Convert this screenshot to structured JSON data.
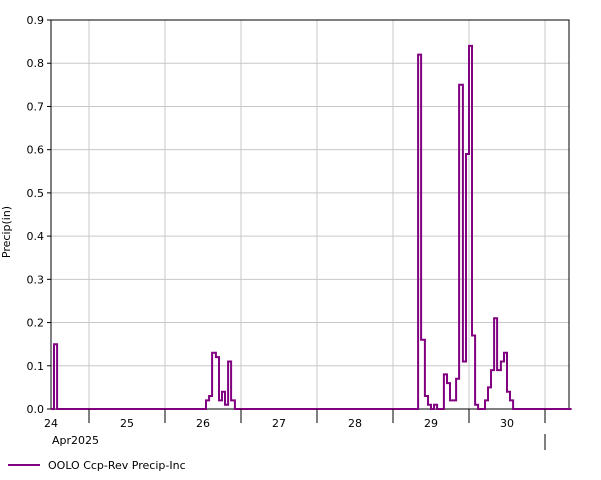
{
  "chart_data": {
    "type": "line",
    "step": true,
    "ylabel": "Precip(in)",
    "xlabel": "",
    "ylim": [
      0,
      0.9
    ],
    "yticks": [
      "0.0",
      "0.1",
      "0.2",
      "0.3",
      "0.4",
      "0.5",
      "0.6",
      "0.7",
      "0.8",
      "0.9"
    ],
    "xlim": [
      24.0,
      30.85
    ],
    "xticks": [
      "24",
      "25",
      "26",
      "27",
      "28",
      "29",
      "30"
    ],
    "month_label": "Apr2025",
    "grid": true,
    "legend_position": "bottom-left",
    "series_color": "#800080",
    "series": [
      {
        "name": "OOLO Ccp-Rev Precip-Inc",
        "x": [
          24.0,
          24.04,
          24.08,
          25.0,
          26.0,
          26.04,
          26.08,
          26.12,
          26.17,
          26.21,
          26.25,
          26.29,
          26.33,
          26.37,
          26.42,
          26.46,
          27.0,
          28.0,
          28.79,
          28.83,
          28.87,
          28.92,
          28.96,
          29.0,
          29.04,
          29.08,
          29.12,
          29.17,
          29.21,
          29.25,
          29.29,
          29.33,
          29.37,
          29.42,
          29.46,
          29.5,
          29.54,
          29.58,
          29.62,
          29.67,
          29.71,
          29.75,
          29.79,
          29.83,
          29.87,
          29.92,
          29.96,
          30.0,
          30.04,
          30.08,
          30.12,
          30.17,
          30.85
        ],
        "y": [
          0.0,
          0.15,
          0.0,
          0.0,
          0.0,
          0.02,
          0.03,
          0.13,
          0.12,
          0.02,
          0.04,
          0.01,
          0.11,
          0.02,
          0.0,
          0.0,
          0.0,
          0.0,
          0.0,
          0.82,
          0.16,
          0.03,
          0.01,
          0.0,
          0.01,
          0.0,
          0.0,
          0.08,
          0.06,
          0.02,
          0.02,
          0.07,
          0.75,
          0.11,
          0.59,
          0.84,
          0.17,
          0.01,
          0.0,
          0.0,
          0.02,
          0.05,
          0.09,
          0.21,
          0.09,
          0.11,
          0.13,
          0.04,
          0.02,
          0.0,
          0.0,
          0.0,
          0.0
        ]
      }
    ]
  }
}
